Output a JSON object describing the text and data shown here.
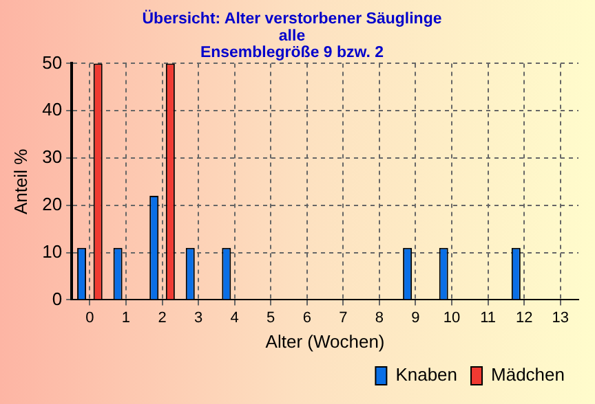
{
  "chart_data": {
    "type": "bar",
    "title": "Übersicht: Alter verstorbener Säuglinge\nalle\nEnsemblegröße 9 bzw. 2",
    "xlabel": "Alter (Wochen)",
    "ylabel": "Anteil %",
    "categories": [
      "0",
      "1",
      "2",
      "3",
      "4",
      "5",
      "6",
      "7",
      "8",
      "9",
      "10",
      "11",
      "12",
      "13"
    ],
    "series": [
      {
        "name": "Knaben",
        "color": "#0a6fe6",
        "values": [
          11,
          11,
          22,
          11,
          11,
          0,
          0,
          0,
          0,
          11,
          11,
          0,
          11,
          0
        ]
      },
      {
        "name": "Mädchen",
        "color": "#f03a32",
        "values": [
          50,
          0,
          50,
          0,
          0,
          0,
          0,
          0,
          0,
          0,
          0,
          0,
          0,
          0
        ]
      }
    ],
    "ylim": [
      0,
      50
    ],
    "yticks": [
      0,
      10,
      20,
      30,
      40,
      50
    ],
    "grid": true,
    "legend": "bottom right"
  }
}
